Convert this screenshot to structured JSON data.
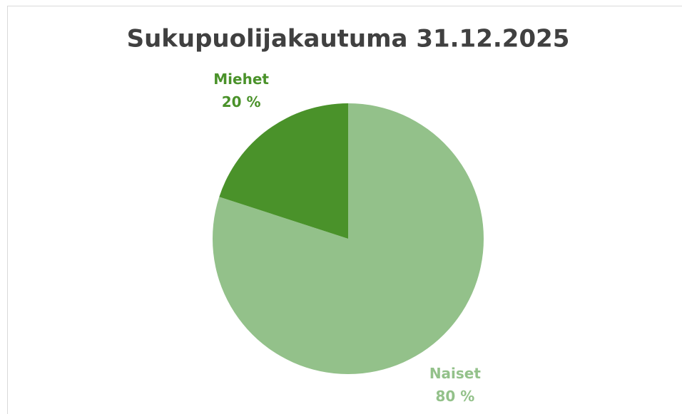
{
  "chart_data": {
    "type": "pie",
    "title": "Sukupuolijakautuma 31.12.2025",
    "categories": [
      "Naiset",
      "Miehet"
    ],
    "values": [
      80,
      20
    ],
    "value_labels": [
      "80 %",
      "20 %"
    ],
    "colors": [
      "#93c18a",
      "#4a922a"
    ]
  }
}
